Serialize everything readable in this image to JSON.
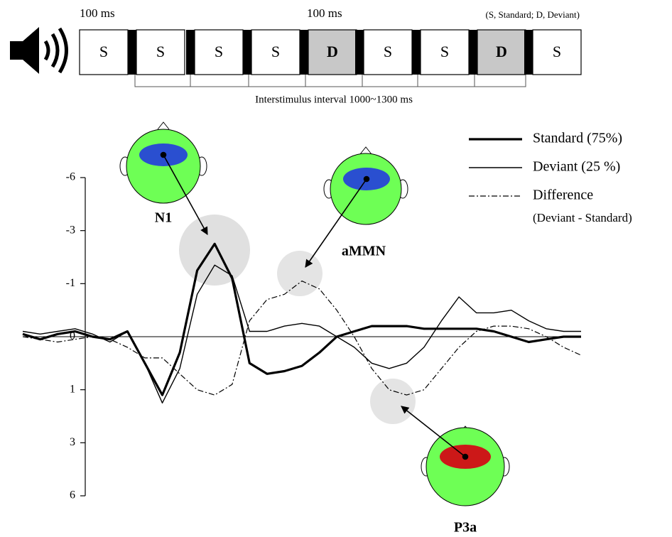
{
  "stimulus": {
    "labels": [
      "S",
      "S",
      "S",
      "S",
      "D",
      "S",
      "S",
      "D",
      "S"
    ],
    "box_colors": [
      "#ffffff",
      "#ffffff",
      "#ffffff",
      "#ffffff",
      "#c8c8c8",
      "#ffffff",
      "#ffffff",
      "#c8c8c8",
      "#ffffff"
    ],
    "duration_labels": [
      "100 ms",
      "100 ms"
    ],
    "note": "(S, Standard; D, Deviant)",
    "interval_label": "Interstimulus interval 1000~1300 ms"
  },
  "chart_data": {
    "type": "line",
    "categories": [
      null,
      null,
      null,
      null,
      null,
      null,
      null,
      null,
      null,
      null,
      null,
      null,
      null,
      null,
      null,
      null,
      null,
      null,
      null,
      null,
      null,
      null,
      null,
      null,
      null,
      null,
      null,
      null,
      null,
      null,
      null,
      null,
      null
    ],
    "series": [
      {
        "name": "Standard (75%)",
        "color": "#000000",
        "width": 3.2,
        "dash": "none",
        "values": [
          -0.05,
          0.05,
          -0.05,
          -0.1,
          0,
          0.05,
          -0.1,
          0.5,
          1.2,
          0.3,
          -1.5,
          -2.5,
          -1.2,
          0.5,
          0.7,
          0.65,
          0.55,
          0.3,
          0,
          -0.1,
          -0.2,
          -0.2,
          -0.2,
          -0.15,
          -0.15,
          -0.15,
          -0.15,
          -0.1,
          0,
          0.1,
          0.05,
          0,
          0
        ]
      },
      {
        "name": "Deviant (25 %)",
        "color": "#000000",
        "width": 1.4,
        "dash": "none",
        "values": [
          -0.1,
          -0.05,
          -0.1,
          -0.15,
          -0.05,
          0.1,
          -0.1,
          0.5,
          1.5,
          0.6,
          -0.8,
          -1.7,
          -1.3,
          -0.1,
          -0.1,
          -0.2,
          -0.25,
          -0.2,
          0,
          0.2,
          0.5,
          0.6,
          0.5,
          0.2,
          -0.3,
          -0.75,
          -0.45,
          -0.45,
          -0.5,
          -0.3,
          -0.15,
          -0.1,
          -0.1
        ]
      },
      {
        "name": "Difference",
        "color": "#000000",
        "width": 1.2,
        "dash": "8 3 2 3",
        "values": [
          0,
          0.05,
          0.1,
          0.05,
          0,
          0.05,
          0.2,
          0.4,
          0.4,
          0.7,
          1.0,
          1.2,
          0.9,
          -0.3,
          -0.7,
          -0.8,
          -1.1,
          -0.9,
          -0.5,
          0,
          0.6,
          1.0,
          1.2,
          1.0,
          0.6,
          0.2,
          -0.1,
          -0.2,
          -0.2,
          -0.15,
          0,
          0.2,
          0.35
        ]
      }
    ],
    "legend_note": "(Deviant - Standard)",
    "ylim": [
      -6,
      6
    ],
    "y_inverted": true,
    "yticks": [
      -6,
      -3,
      -1,
      0,
      1,
      3,
      6
    ],
    "annotations": [
      "N1",
      "aMMN",
      "P3a"
    ]
  }
}
